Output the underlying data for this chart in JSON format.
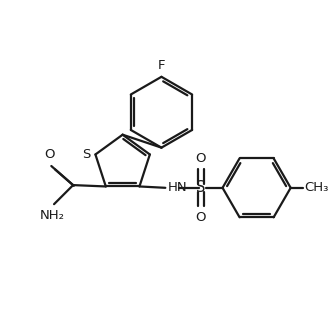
{
  "bg_color": "#ffffff",
  "line_color": "#1a1a1a",
  "line_width": 1.6,
  "font_size": 9.5,
  "xlim": [
    -1.0,
    3.8
  ],
  "ylim": [
    -0.5,
    3.4
  ]
}
